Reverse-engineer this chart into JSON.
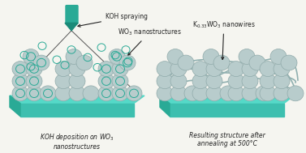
{
  "bg_color": "#f5f5f0",
  "teal_dark": "#2aaa96",
  "teal_mid": "#3dbfaf",
  "teal_light": "#55d9c8",
  "sphere_color": "#b8cccc",
  "sphere_edge": "#90aaaa",
  "spray_body": "#2aaa96",
  "spray_tip": "#1a8a78",
  "nanowire_color": "#90b0b0",
  "arrow_color": "#222222",
  "ring_color": "#2aaa96",
  "droplet_color": "#2aaa96",
  "label_left": "KOH deposition on WO$_3$\nnanostructures",
  "label_right": "Resulting structure after\nannealing at 500°C",
  "ann_spray": "KOH spraying",
  "ann_wo3": "WO$_3$ nanostructures",
  "ann_nanowire": "K$_{0.33}$WO$_3$ nanowires",
  "text_color": "#222222"
}
